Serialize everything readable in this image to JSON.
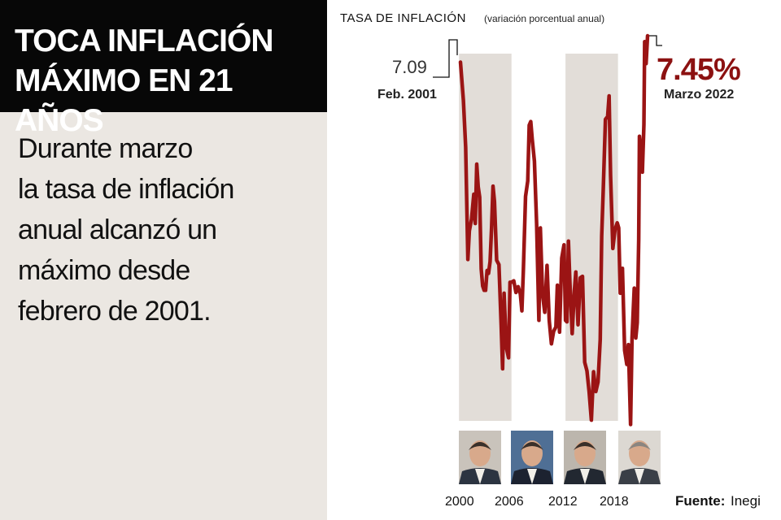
{
  "headline": {
    "line1": "TOCA INFLACIÓN",
    "line2": "MÁXIMO EN 21 AÑOS"
  },
  "body_text": {
    "lines": [
      "Durante marzo",
      "la tasa de inflación",
      "anual alcanzó un",
      "máximo desde",
      "febrero de 2001."
    ]
  },
  "colors": {
    "series": "#9b1414",
    "shade": "#e2ddd8",
    "headline_bg": "#070707",
    "panel_bg": "#ebe7e2",
    "accent_text": "#8c1111"
  },
  "chart_data": {
    "type": "line",
    "title": "TASA DE INFLACIÓN",
    "subtitle": "(variación porcentual anual)",
    "x_ticks": [
      "2000",
      "2006",
      "2012",
      "2018"
    ],
    "xlim": [
      "2001-02",
      "2022-03"
    ],
    "ylim": [
      2.2,
      7.45
    ],
    "shaded_periods": [
      [
        "2000-12",
        "2006-11"
      ],
      [
        "2012-12",
        "2018-11"
      ]
    ],
    "annotations": [
      {
        "value": "7.09",
        "date": "Feb. 2001"
      },
      {
        "value": "7.45%",
        "date": "Marzo 2022"
      }
    ],
    "president_icons": [
      "president-fox-icon",
      "president-calderon-icon",
      "president-pena-icon",
      "president-amlo-icon"
    ],
    "series": [
      {
        "x": [
          "2001-02",
          "2001-06",
          "2001-09",
          "2001-12",
          "2002-02",
          "2002-05",
          "2002-08",
          "2002-10",
          "2002-12",
          "2003-02",
          "2003-04",
          "2003-06",
          "2003-08",
          "2003-10",
          "2003-12",
          "2004-02",
          "2004-04",
          "2004-06",
          "2004-08",
          "2004-10",
          "2004-12",
          "2005-03",
          "2005-06",
          "2005-09",
          "2005-11",
          "2006-01",
          "2006-04",
          "2006-07",
          "2006-09",
          "2006-11",
          "2007-02",
          "2007-05",
          "2007-08",
          "2007-11",
          "2008-01",
          "2008-03",
          "2008-06",
          "2008-09",
          "2008-11",
          "2009-01",
          "2009-03",
          "2009-06",
          "2009-09",
          "2009-12",
          "2010-02",
          "2010-05",
          "2010-08",
          "2010-11",
          "2011-02",
          "2011-05",
          "2011-08",
          "2011-11",
          "2012-01",
          "2012-04",
          "2012-07",
          "2012-10",
          "2012-12",
          "2013-02",
          "2013-04",
          "2013-06",
          "2013-09",
          "2013-12",
          "2014-02",
          "2014-05",
          "2014-08",
          "2014-11",
          "2015-02",
          "2015-05",
          "2015-08",
          "2015-11",
          "2016-02",
          "2016-05",
          "2016-08",
          "2016-11",
          "2017-01",
          "2017-03",
          "2017-06",
          "2017-09",
          "2017-11",
          "2018-01",
          "2018-04",
          "2018-07",
          "2018-10",
          "2018-12",
          "2019-02",
          "2019-05",
          "2019-08",
          "2019-11",
          "2020-01",
          "2020-04",
          "2020-06",
          "2020-09",
          "2020-11",
          "2021-01",
          "2021-03",
          "2021-04",
          "2021-06",
          "2021-08",
          "2021-10",
          "2021-11",
          "2022-01",
          "2022-03"
        ],
        "values": [
          7.09,
          6.57,
          5.93,
          4.4,
          4.79,
          4.95,
          5.29,
          4.89,
          5.7,
          5.39,
          5.25,
          4.27,
          4.04,
          3.98,
          3.98,
          4.25,
          4.21,
          4.37,
          4.82,
          5.4,
          5.19,
          4.39,
          4.33,
          3.51,
          2.91,
          3.94,
          3.2,
          3.06,
          4.09,
          4.09,
          4.11,
          3.95,
          4.03,
          3.93,
          3.7,
          4.25,
          5.26,
          5.47,
          6.23,
          6.28,
          6.04,
          5.74,
          4.89,
          3.57,
          4.83,
          3.92,
          3.68,
          4.32,
          3.57,
          3.25,
          3.42,
          3.48,
          4.05,
          3.41,
          4.42,
          4.6,
          3.57,
          3.55,
          4.65,
          4.09,
          3.39,
          3.97,
          4.23,
          3.51,
          4.15,
          4.17,
          3.0,
          2.88,
          2.59,
          2.21,
          2.87,
          2.6,
          2.73,
          3.31,
          4.72,
          5.35,
          6.31,
          6.35,
          6.63,
          5.55,
          4.55,
          4.81,
          4.9,
          4.83,
          3.94,
          4.28,
          3.16,
          2.97,
          3.24,
          2.15,
          3.33,
          4.01,
          3.33,
          3.54,
          4.67,
          6.08,
          5.88,
          5.59,
          6.24,
          7.37,
          7.07,
          7.45
        ]
      }
    ]
  },
  "source": {
    "label": "Fuente:",
    "value": "Inegi"
  }
}
